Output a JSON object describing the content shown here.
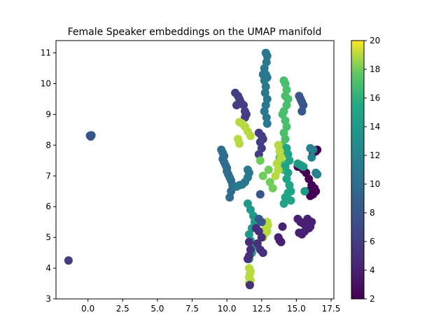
{
  "chart_data": {
    "type": "scatter",
    "title": "Female Speaker embeddings on the UMAP manifold",
    "xlabel": "",
    "ylabel": "",
    "xlim": [
      -2.3,
      17.7
    ],
    "ylim": [
      3.0,
      11.4
    ],
    "xticks": [
      "0.0",
      "2.5",
      "5.0",
      "7.5",
      "10.0",
      "12.5",
      "15.0",
      "17.5"
    ],
    "yticks": [
      "3",
      "4",
      "5",
      "6",
      "7",
      "8",
      "9",
      "10",
      "11"
    ],
    "colormap": "viridis",
    "colorbar": {
      "min": 2,
      "max": 20,
      "ticks": [
        "2",
        "4",
        "6",
        "8",
        "10",
        "12",
        "14",
        "16",
        "18",
        "20"
      ]
    },
    "clusters": [
      {
        "x": [
          0.2,
          0.2,
          0.15,
          0.25
        ],
        "y": [
          8.3,
          8.28,
          8.31,
          8.32
        ],
        "c": 8
      },
      {
        "x": [
          -1.4
        ],
        "y": [
          4.25
        ],
        "c": 6
      },
      {
        "x": [
          12.8,
          12.9,
          12.85,
          12.7,
          12.8,
          12.9,
          12.6,
          12.7,
          12.8,
          12.75,
          12.9,
          12.8,
          12.7,
          12.85,
          12.9
        ],
        "y": [
          11.0,
          10.9,
          10.7,
          10.5,
          10.3,
          10.2,
          10.3,
          10.1,
          9.9,
          9.7,
          9.5,
          9.3,
          9.1,
          8.9,
          8.7
        ],
        "c": 11
      },
      {
        "x": [
          14.1,
          14.2,
          14.3,
          14.2,
          14.4,
          14.3,
          14.1,
          14.0,
          14.2,
          14.3,
          14.1,
          14.2,
          14.0,
          13.9,
          13.8,
          14.0,
          14.1
        ],
        "y": [
          10.1,
          10.0,
          9.8,
          9.6,
          9.5,
          9.3,
          9.1,
          9.0,
          8.8,
          8.6,
          8.4,
          8.2,
          8.0,
          7.8,
          7.6,
          7.4,
          7.2
        ],
        "c": 17
      },
      {
        "x": [
          10.6,
          10.8,
          10.9,
          11.0,
          10.7,
          11.2,
          11.3,
          11.4,
          11.3
        ],
        "y": [
          9.7,
          9.6,
          9.5,
          9.4,
          9.3,
          9.3,
          9.1,
          9.0,
          8.9
        ],
        "c": 6
      },
      {
        "x": [
          15.2,
          15.3,
          15.4,
          15.5,
          15.4
        ],
        "y": [
          9.6,
          9.5,
          9.4,
          9.3,
          9.1
        ],
        "c": 8
      },
      {
        "x": [
          10.9,
          11.1,
          11.3,
          11.5,
          11.7,
          10.8,
          10.9
        ],
        "y": [
          8.75,
          8.7,
          8.6,
          8.45,
          8.3,
          8.2,
          8.05
        ],
        "c": 19
      },
      {
        "x": [
          12.3,
          12.5,
          12.6,
          12.4,
          12.5,
          12.3
        ],
        "y": [
          8.4,
          8.3,
          8.2,
          8.1,
          7.9,
          7.7
        ],
        "c": 6
      },
      {
        "x": [
          9.6,
          9.7,
          9.8,
          9.7,
          9.8,
          9.9,
          10.0,
          10.0,
          10.1,
          10.2,
          10.3,
          10.4,
          10.3,
          10.2
        ],
        "y": [
          7.85,
          7.75,
          7.65,
          7.55,
          7.45,
          7.35,
          7.25,
          7.15,
          7.05,
          6.95,
          6.85,
          6.7,
          6.5,
          6.3
        ],
        "c": 10
      },
      {
        "x": [
          10.7,
          10.9,
          11.1,
          11.3,
          11.5,
          11.6,
          11.5
        ],
        "y": [
          6.65,
          6.7,
          6.72,
          6.8,
          6.95,
          7.1,
          7.2
        ],
        "c": 11
      },
      {
        "x": [
          14.3,
          14.4,
          14.5,
          14.2,
          14.4,
          14.3,
          14.5,
          14.6,
          14.2,
          14.1,
          14.6,
          14.4
        ],
        "y": [
          7.9,
          7.7,
          7.5,
          7.3,
          7.1,
          6.9,
          6.7,
          6.5,
          6.3,
          6.1,
          6.2,
          6.45
        ],
        "c": 15
      },
      {
        "x": [
          13.7,
          13.8,
          13.9,
          13.6,
          13.7,
          13.5
        ],
        "y": [
          8.0,
          7.8,
          7.6,
          7.4,
          7.2,
          7.0
        ],
        "c": 19
      },
      {
        "x": [
          15.1,
          15.3,
          15.5,
          15.7,
          15.9,
          16.1,
          16.3,
          16.4,
          16.2,
          16.0,
          15.8,
          16.4,
          16.5,
          16.2
        ],
        "y": [
          7.3,
          7.3,
          7.2,
          7.1,
          6.9,
          6.7,
          6.6,
          6.5,
          6.4,
          6.35,
          6.5,
          7.8,
          7.85,
          7.75
        ],
        "c": 2
      },
      {
        "x": [
          15.1,
          15.3,
          15.5,
          15.7,
          15.9,
          16.0,
          15.6,
          15.4,
          15.2,
          16.1,
          15.8
        ],
        "y": [
          5.6,
          5.5,
          5.45,
          5.4,
          5.3,
          5.35,
          5.2,
          5.1,
          5.15,
          5.5,
          5.6
        ],
        "c": 4
      },
      {
        "x": [
          11.5,
          11.7,
          11.9,
          12.0,
          11.8,
          11.6,
          11.7,
          11.9,
          11.8,
          11.6
        ],
        "y": [
          6.1,
          5.9,
          5.7,
          5.5,
          5.3,
          5.1,
          4.9,
          4.7,
          4.5,
          4.3
        ],
        "c": 14
      },
      {
        "x": [
          12.9,
          12.95,
          12.8,
          12.9,
          12.7,
          12.6
        ],
        "y": [
          5.5,
          5.4,
          5.3,
          5.2,
          5.1,
          5.0
        ],
        "c": 19
      },
      {
        "x": [
          11.6,
          11.7,
          11.65,
          11.6,
          11.7,
          11.6
        ],
        "y": [
          4.0,
          3.9,
          3.8,
          3.7,
          3.6,
          3.5
        ],
        "c": 19
      },
      {
        "x": [
          11.6,
          11.7,
          11.6,
          11.5,
          11.65
        ],
        "y": [
          4.85,
          4.6,
          4.4,
          4.3,
          3.45
        ],
        "c": 5
      },
      {
        "x": [
          12.1,
          12.3,
          12.5,
          12.2,
          12.4,
          12.6
        ],
        "y": [
          5.3,
          5.2,
          5.0,
          4.8,
          4.6,
          4.5
        ],
        "c": 5
      },
      {
        "x": [
          13.7,
          13.8,
          13.9,
          14.0
        ],
        "y": [
          5.0,
          4.9,
          4.85,
          5.35
        ],
        "c": 4
      },
      {
        "x": [
          12.3,
          12.5,
          12.4
        ],
        "y": [
          5.6,
          5.5,
          6.4
        ],
        "c": 8
      },
      {
        "x": [
          15.1,
          15.3,
          15.5,
          15.6
        ],
        "y": [
          7.4,
          7.35,
          7.3,
          6.5
        ],
        "c": 14
      },
      {
        "x": [
          16.0,
          16.2,
          16.1,
          16.4,
          16.5
        ],
        "y": [
          7.9,
          7.85,
          7.6,
          7.1,
          7.05
        ],
        "c": 12
      },
      {
        "x": [
          12.4,
          12.6,
          13.1,
          13.3,
          13.0
        ],
        "y": [
          7.5,
          7.0,
          6.8,
          6.6,
          7.2
        ],
        "c": 18
      }
    ]
  }
}
